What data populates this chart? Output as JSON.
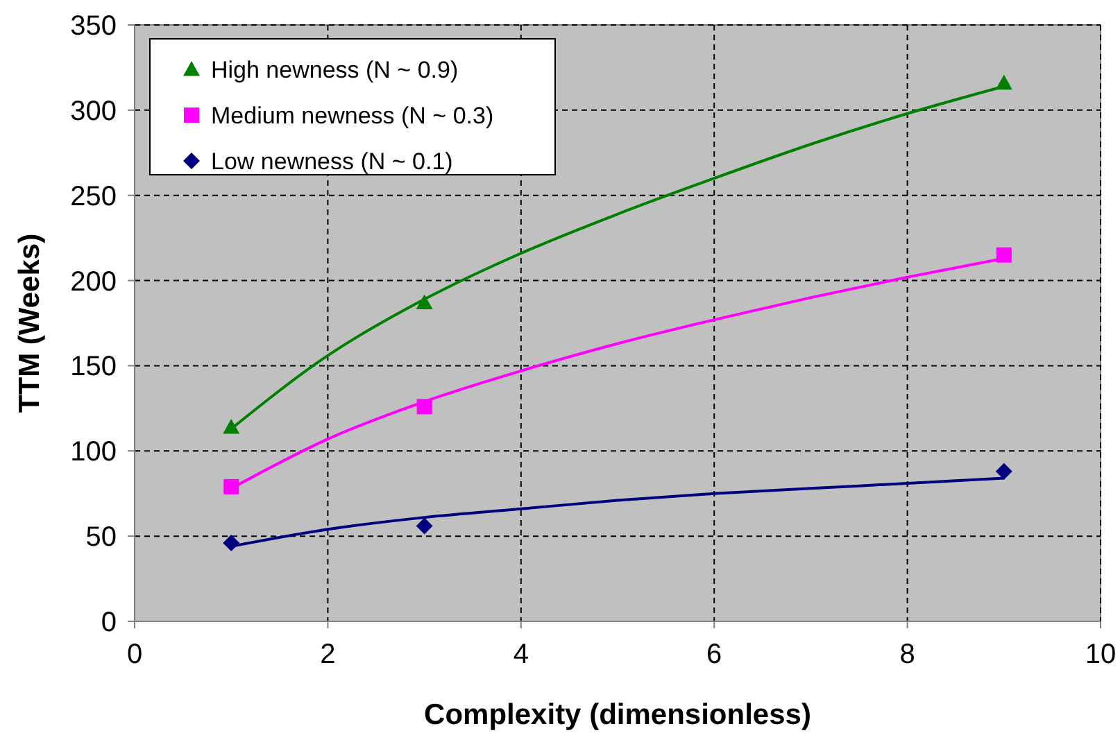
{
  "chart_data": {
    "type": "scatter",
    "xlabel": "Complexity (dimensionless)",
    "ylabel": "TTM (Weeks)",
    "xlim": [
      0,
      10
    ],
    "ylim": [
      0,
      350
    ],
    "xticks": [
      0,
      2,
      4,
      6,
      8,
      10
    ],
    "yticks": [
      0,
      50,
      100,
      150,
      200,
      250,
      300,
      350
    ],
    "grid": true,
    "legend": "top left",
    "series": [
      {
        "name": "High newness (N ~ 0.9)",
        "color": "#008000",
        "marker": "triangle",
        "x": [
          1,
          3,
          9
        ],
        "values": [
          114,
          187,
          316
        ]
      },
      {
        "name": "Medium newness (N ~ 0.3)",
        "color": "#ff00ff",
        "marker": "square",
        "x": [
          1,
          3,
          9
        ],
        "values": [
          79,
          126,
          215
        ]
      },
      {
        "name": "Low newness (N ~ 0.1)",
        "color": "#000080",
        "marker": "diamond",
        "x": [
          1,
          3,
          9
        ],
        "values": [
          46,
          56,
          88
        ]
      },
      {
        "type": "line",
        "color": "#008000",
        "marker": "none",
        "x": [
          1,
          2,
          3,
          4,
          5,
          6,
          7,
          8,
          9
        ],
        "values": [
          113,
          156,
          189,
          216,
          239,
          260,
          280,
          298,
          314
        ]
      },
      {
        "type": "line",
        "color": "#ff00ff",
        "marker": "none",
        "x": [
          1,
          2,
          3,
          4,
          5,
          6,
          7,
          8,
          9
        ],
        "values": [
          78,
          107,
          129,
          147,
          163,
          177,
          190,
          202,
          213
        ]
      },
      {
        "type": "line",
        "color": "#000080",
        "marker": "none",
        "x": [
          1,
          2,
          3,
          4,
          5,
          6,
          7,
          8,
          9
        ],
        "values": [
          44,
          54,
          61,
          66,
          71,
          75,
          78,
          81,
          84
        ]
      }
    ]
  }
}
